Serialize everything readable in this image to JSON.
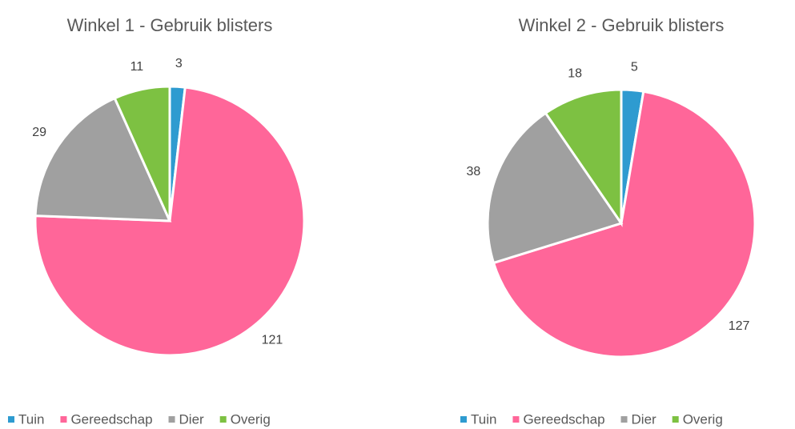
{
  "chart_data": [
    {
      "type": "pie",
      "title": "Winkel 1 - Gebruik blisters",
      "categories": [
        "Tuin",
        "Gereedschap",
        "Dier",
        "Overig"
      ],
      "values": [
        3,
        121,
        29,
        11
      ],
      "colors": [
        "#2e9bd0",
        "#ff6699",
        "#a0a0a0",
        "#7dc142"
      ],
      "legend": "bottom"
    },
    {
      "type": "pie",
      "title": "Winkel 2 - Gebruik blisters",
      "categories": [
        "Tuin",
        "Gereedschap",
        "Dier",
        "Overig"
      ],
      "values": [
        5,
        127,
        38,
        18
      ],
      "colors": [
        "#2e9bd0",
        "#ff6699",
        "#a0a0a0",
        "#7dc142"
      ],
      "legend": "bottom"
    }
  ]
}
